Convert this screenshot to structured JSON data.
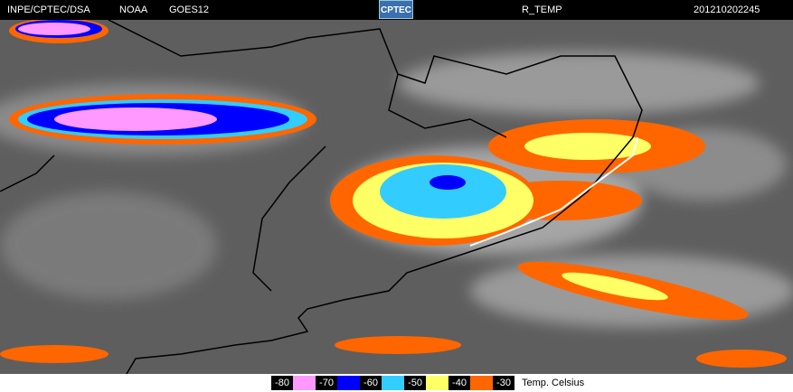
{
  "header": {
    "source": "INPE/CPTEC/DSA",
    "satellite": "NOAA",
    "instrument": "GOES12",
    "logo": "CPTEC",
    "product": "R_TEMP",
    "timestamp": "201210202245"
  },
  "legend": {
    "levels": [
      "-80",
      "-70",
      "-60",
      "-50",
      "-40",
      "-30"
    ],
    "colors": [
      "#ff99ff",
      "#0000ff",
      "#33ccff",
      "#ffff66",
      "#ff6600"
    ],
    "unit": "Temp. Celsius"
  }
}
